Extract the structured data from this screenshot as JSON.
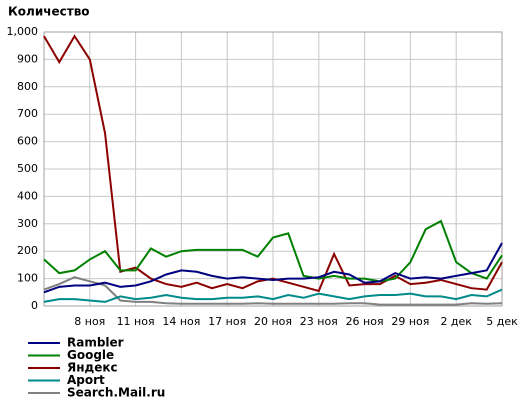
{
  "chart_data": {
    "type": "line",
    "title": "Количество",
    "categories": [
      null,
      null,
      null,
      "8 ноя",
      null,
      null,
      "11 ноя",
      null,
      null,
      "14 ноя",
      null,
      null,
      "17 ноя",
      null,
      null,
      "20 ноя",
      null,
      null,
      "23 ноя",
      null,
      null,
      "26 ноя",
      null,
      null,
      "29 ноя",
      null,
      null,
      "2 дек",
      null,
      null,
      "5 дек"
    ],
    "ylim": [
      0,
      1000
    ],
    "yticks": [
      0,
      100,
      200,
      300,
      400,
      500,
      600,
      700,
      800,
      900,
      {
        "value": 1000,
        "label": "1,000"
      }
    ],
    "grid": true,
    "series": [
      {
        "name": "Rambler",
        "color": "#000080",
        "values": [
          50,
          70,
          75,
          75,
          85,
          70,
          75,
          90,
          115,
          130,
          125,
          110,
          100,
          105,
          100,
          95,
          100,
          100,
          105,
          125,
          115,
          85,
          90,
          120,
          100,
          105,
          100,
          110,
          120,
          130,
          230
        ]
      },
      {
        "name": "Google",
        "color": "#008000",
        "values": [
          170,
          120,
          130,
          170,
          200,
          130,
          130,
          210,
          180,
          200,
          205,
          205,
          205,
          205,
          180,
          250,
          265,
          110,
          100,
          110,
          100,
          100,
          90,
          100,
          160,
          280,
          310,
          160,
          120,
          100,
          185
        ]
      },
      {
        "name": "Яндекс",
        "color": "#8b0000",
        "values": [
          985,
          890,
          985,
          900,
          630,
          125,
          140,
          100,
          80,
          70,
          85,
          65,
          80,
          65,
          90,
          100,
          85,
          70,
          55,
          190,
          75,
          80,
          80,
          110,
          80,
          85,
          95,
          80,
          65,
          60,
          160
        ]
      },
      {
        "name": "Aport",
        "color": "#008b8b",
        "values": [
          15,
          25,
          25,
          20,
          15,
          35,
          25,
          30,
          40,
          30,
          25,
          25,
          30,
          30,
          35,
          25,
          40,
          30,
          45,
          35,
          25,
          35,
          40,
          40,
          45,
          35,
          35,
          25,
          40,
          35,
          60
        ]
      },
      {
        "name": "Search.Mail.ru",
        "color": "#808080",
        "values": [
          60,
          80,
          105,
          90,
          75,
          20,
          15,
          15,
          10,
          8,
          8,
          8,
          8,
          8,
          10,
          8,
          8,
          8,
          8,
          8,
          10,
          10,
          5,
          5,
          5,
          5,
          5,
          5,
          10,
          8,
          10
        ]
      }
    ]
  }
}
